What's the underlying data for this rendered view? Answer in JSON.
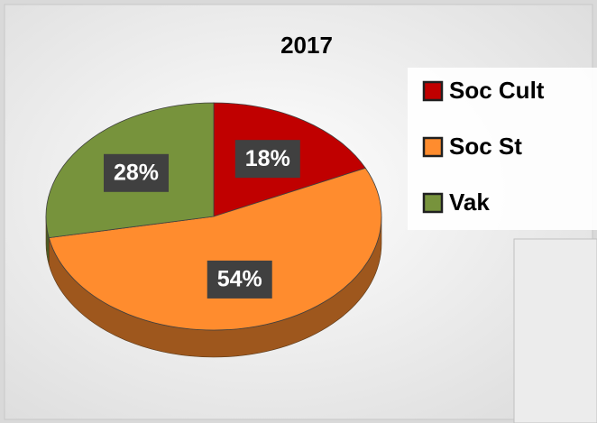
{
  "chart_data": {
    "type": "pie",
    "title": "2017",
    "categories": [
      "Soc Cult",
      "Soc St",
      "Vak"
    ],
    "values": [
      18,
      54,
      28
    ],
    "value_labels": [
      "18%",
      "54%",
      "28%"
    ],
    "colors": [
      "#c00000",
      "#ff8c2e",
      "#77933c"
    ],
    "legend": "right"
  }
}
